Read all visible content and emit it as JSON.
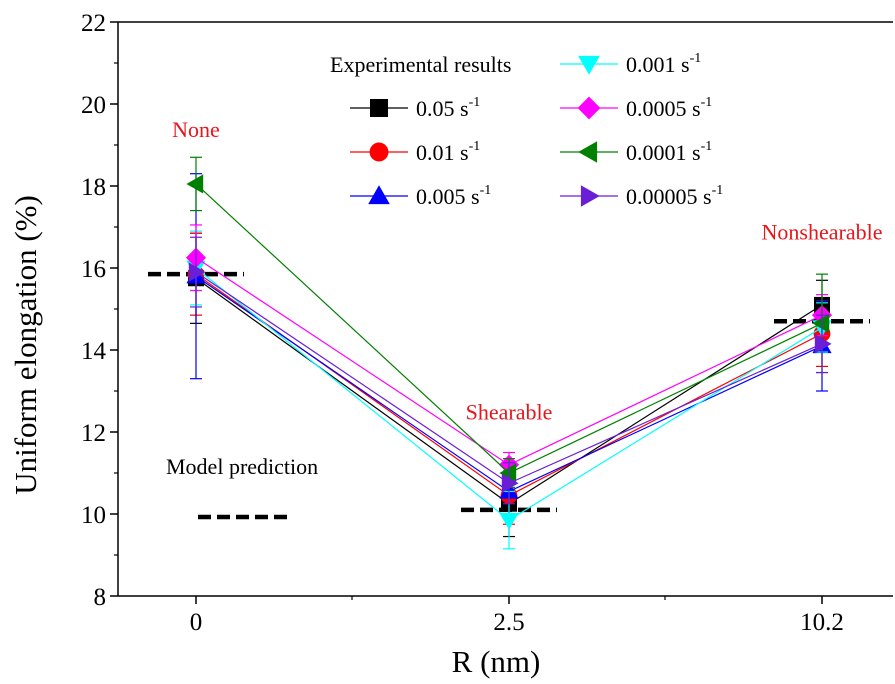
{
  "chart_data": {
    "type": "line",
    "xlabel": "R (nm)",
    "ylabel": "Uniform elongation (%)",
    "categories": [
      "0",
      "2.5",
      "10.2"
    ],
    "ylim": [
      8,
      22
    ],
    "yticks": [
      "8",
      "10",
      "12",
      "14",
      "16",
      "18",
      "20",
      "22"
    ],
    "grid": false,
    "legend_title": "Experimental results",
    "legend_position": "top-center",
    "annotations": [
      {
        "text": "None",
        "category": "0",
        "y": 19.2,
        "color": "#e8141a"
      },
      {
        "text": "Shearable",
        "category": "2.5",
        "y": 12.3,
        "color": "#e8141a"
      },
      {
        "text": "Nonshearable",
        "category": "10.2",
        "y": 16.7,
        "color": "#e8141a"
      }
    ],
    "model_prediction": {
      "label": "Model prediction",
      "values": [
        15.85,
        10.1,
        14.7
      ]
    },
    "series": [
      {
        "name": "0.05",
        "unit": "s",
        "exp": "-1",
        "marker": "square",
        "color": "#000000",
        "values": [
          15.75,
          10.25,
          15.1
        ],
        "err": [
          1.1,
          0.8,
          0.6
        ]
      },
      {
        "name": "0.01",
        "unit": "s",
        "exp": "-1",
        "marker": "circle",
        "color": "#ff0000",
        "values": [
          15.85,
          10.45,
          14.4
        ],
        "err": [
          1.0,
          0.7,
          0.8
        ]
      },
      {
        "name": "0.005",
        "unit": "s",
        "exp": "-1",
        "marker": "triangle-up",
        "color": "#0000ff",
        "values": [
          15.8,
          10.55,
          14.1
        ],
        "err": [
          2.5,
          0.6,
          1.1
        ]
      },
      {
        "name": "0.001",
        "unit": "s",
        "exp": "-1",
        "marker": "triangle-down",
        "color": "#00ffff",
        "values": [
          16.0,
          9.85,
          14.55
        ],
        "err": [
          0.9,
          0.7,
          0.6
        ]
      },
      {
        "name": "0.0005",
        "unit": "s",
        "exp": "-1",
        "marker": "diamond",
        "color": "#ff00ff",
        "values": [
          16.25,
          11.2,
          14.85
        ],
        "err": [
          0.8,
          0.3,
          0.5
        ]
      },
      {
        "name": "0.0001",
        "unit": "s",
        "exp": "-1",
        "marker": "triangle-left",
        "color": "#008000",
        "values": [
          18.05,
          11.0,
          14.65
        ],
        "err": [
          0.65,
          0.35,
          1.2
        ]
      },
      {
        "name": "0.00005",
        "unit": "s",
        "exp": "-1",
        "marker": "triangle-right",
        "color": "#6a1fd6",
        "values": [
          15.9,
          10.75,
          14.15
        ],
        "err": [
          0.85,
          0.5,
          0.7
        ]
      }
    ]
  }
}
